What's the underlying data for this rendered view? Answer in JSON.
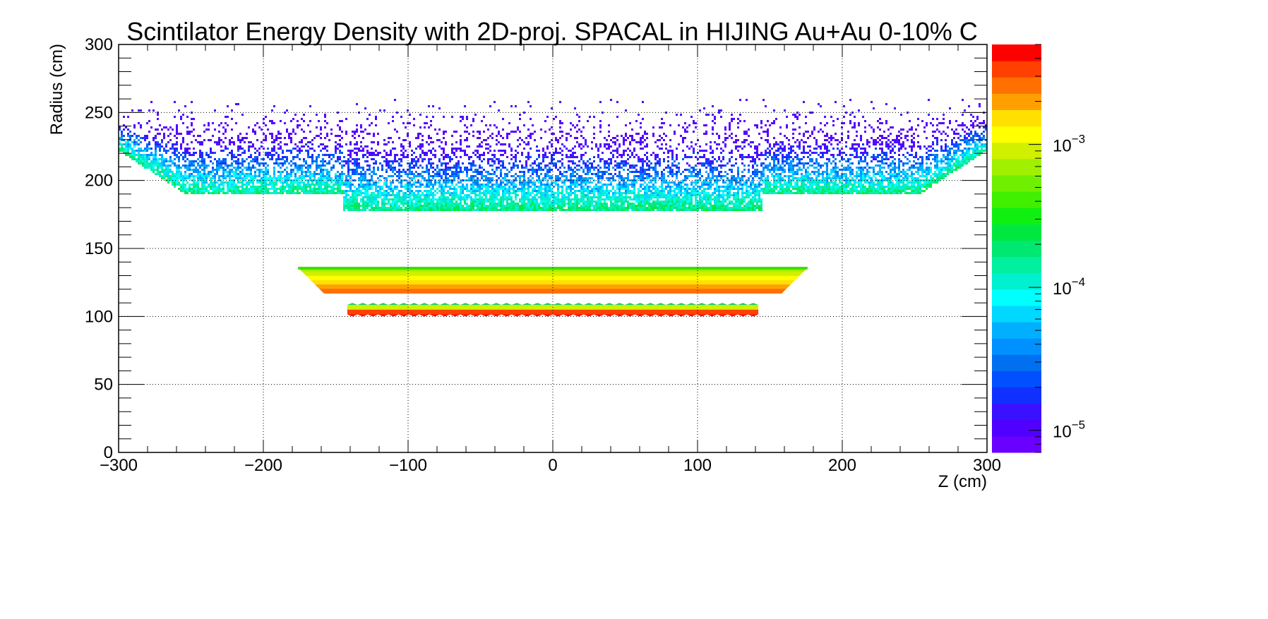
{
  "chart_data": {
    "type": "heatmap",
    "title": "Scintilator Energy Density with 2D-proj. SPACAL in HIJING Au+Au 0-10% C",
    "xlabel": "Z (cm)",
    "ylabel": "Radius (cm)",
    "xlim": [
      -300,
      300
    ],
    "ylim": [
      0,
      300
    ],
    "grid": true,
    "x_ticks": [
      {
        "v": -300,
        "label": "−300"
      },
      {
        "v": -200,
        "label": "−200"
      },
      {
        "v": -100,
        "label": "−100"
      },
      {
        "v": 0,
        "label": "0"
      },
      {
        "v": 100,
        "label": "100"
      },
      {
        "v": 200,
        "label": "200"
      },
      {
        "v": 300,
        "label": "300"
      }
    ],
    "y_ticks": [
      {
        "v": 0,
        "label": "0"
      },
      {
        "v": 50,
        "label": "50"
      },
      {
        "v": 100,
        "label": "100"
      },
      {
        "v": 150,
        "label": "150"
      },
      {
        "v": 200,
        "label": "200"
      },
      {
        "v": 250,
        "label": "250"
      },
      {
        "v": 300,
        "label": "300"
      }
    ],
    "colorbar": {
      "scale": "log",
      "zlim": [
        7e-06,
        0.005
      ],
      "ticks": [
        {
          "v": 1e-05,
          "base": "10",
          "exp": "−5"
        },
        {
          "v": 0.0001,
          "base": "10",
          "exp": "−4"
        },
        {
          "v": 0.001,
          "base": "10",
          "exp": "−3"
        }
      ],
      "colors": [
        "#6a00ff",
        "#5000ff",
        "#3a10ff",
        "#1030ff",
        "#0050ff",
        "#0070f0",
        "#0090ff",
        "#00b0ff",
        "#00d8ff",
        "#00ffff",
        "#00f0d0",
        "#00f0a0",
        "#00e870",
        "#00e840",
        "#10f010",
        "#40f000",
        "#70f000",
        "#a0f000",
        "#d0f000",
        "#ffff00",
        "#ffe000",
        "#ffa000",
        "#ff7000",
        "#ff4000",
        "#ff0000"
      ]
    },
    "regions": [
      {
        "name": "outer",
        "profile_z": [
          -300,
          -253,
          -253,
          -145,
          -145,
          145,
          145,
          253,
          253,
          300
        ],
        "profile_rmin": [
          223,
          190,
          190,
          190,
          179,
          179,
          190,
          190,
          190,
          223
        ],
        "rmax": 260,
        "density_low": 1e-05,
        "density_high": 0.0003
      },
      {
        "name": "middle",
        "z_top": [
          -176,
          176
        ],
        "z_bottom": [
          -158,
          158
        ],
        "r_top": 136,
        "r_bottom": 117,
        "density_top": 0.0006,
        "density_bottom": 0.003
      },
      {
        "name": "inner",
        "z_range": [
          -142,
          142
        ],
        "r_range": [
          100,
          110
        ],
        "teeth": 40,
        "density_top": 0.001,
        "density_bottom": 0.005
      }
    ]
  }
}
